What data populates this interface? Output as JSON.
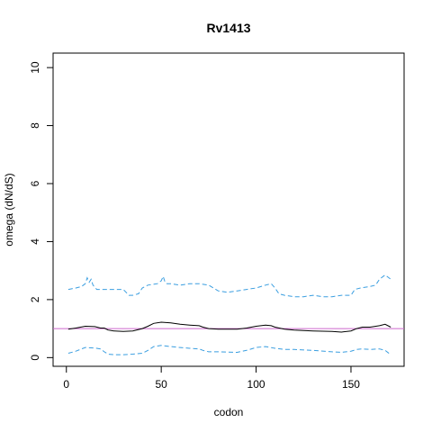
{
  "chart_data": {
    "type": "line",
    "title": "Rv1413",
    "xlabel": "codon",
    "ylabel": "omega (dN/dS)",
    "xlim": [
      -7,
      178
    ],
    "ylim": [
      -0.3,
      10.5
    ],
    "xticks": [
      0,
      50,
      100,
      150
    ],
    "yticks": [
      0,
      2,
      4,
      6,
      8,
      10
    ],
    "reference_line": {
      "y": 1,
      "color": "#cc66cc"
    },
    "series": [
      {
        "role": "estimate",
        "color": "#000000",
        "style": "solid",
        "x": [
          1,
          5,
          10,
          15,
          18,
          20,
          22,
          25,
          30,
          35,
          40,
          43,
          46,
          50,
          55,
          60,
          65,
          70,
          72,
          75,
          80,
          90,
          95,
          100,
          105,
          108,
          110,
          115,
          120,
          130,
          140,
          145,
          150,
          153,
          156,
          160,
          165,
          168,
          171
        ],
        "y": [
          0.98,
          1.02,
          1.08,
          1.07,
          1.02,
          1.02,
          0.95,
          0.92,
          0.9,
          0.92,
          1.0,
          1.08,
          1.18,
          1.22,
          1.2,
          1.15,
          1.12,
          1.1,
          1.05,
          1.0,
          0.98,
          0.98,
          1.02,
          1.08,
          1.12,
          1.1,
          1.05,
          0.98,
          0.95,
          0.92,
          0.9,
          0.88,
          0.92,
          1.0,
          1.05,
          1.05,
          1.1,
          1.15,
          1.05
        ]
      },
      {
        "role": "upper",
        "color": "#3a9ee0",
        "style": "dashed",
        "x": [
          1,
          5,
          8,
          10,
          11,
          12,
          13,
          14,
          16,
          20,
          25,
          30,
          33,
          35,
          38,
          40,
          43,
          48,
          50,
          51,
          52,
          53,
          55,
          60,
          65,
          70,
          75,
          80,
          85,
          90,
          95,
          100,
          105,
          108,
          110,
          112,
          115,
          120,
          125,
          130,
          135,
          140,
          145,
          150,
          152,
          155,
          160,
          163,
          165,
          168,
          171
        ],
        "y": [
          2.35,
          2.4,
          2.45,
          2.55,
          2.75,
          2.6,
          2.7,
          2.5,
          2.35,
          2.35,
          2.35,
          2.35,
          2.15,
          2.15,
          2.2,
          2.4,
          2.5,
          2.55,
          2.65,
          2.8,
          2.6,
          2.55,
          2.55,
          2.5,
          2.55,
          2.55,
          2.5,
          2.3,
          2.25,
          2.3,
          2.35,
          2.4,
          2.5,
          2.55,
          2.4,
          2.2,
          2.15,
          2.1,
          2.1,
          2.15,
          2.1,
          2.1,
          2.15,
          2.15,
          2.35,
          2.4,
          2.45,
          2.5,
          2.7,
          2.85,
          2.7
        ]
      },
      {
        "role": "lower",
        "color": "#3a9ee0",
        "style": "dashed",
        "x": [
          1,
          5,
          8,
          10,
          15,
          18,
          20,
          22,
          25,
          30,
          35,
          40,
          43,
          46,
          50,
          55,
          60,
          65,
          70,
          72,
          75,
          80,
          90,
          95,
          100,
          105,
          110,
          115,
          120,
          130,
          140,
          145,
          150,
          153,
          156,
          160,
          165,
          168,
          171
        ],
        "y": [
          0.15,
          0.22,
          0.3,
          0.35,
          0.33,
          0.3,
          0.2,
          0.12,
          0.1,
          0.1,
          0.12,
          0.15,
          0.25,
          0.38,
          0.42,
          0.38,
          0.35,
          0.32,
          0.3,
          0.25,
          0.2,
          0.2,
          0.18,
          0.25,
          0.35,
          0.38,
          0.32,
          0.28,
          0.28,
          0.25,
          0.2,
          0.18,
          0.22,
          0.28,
          0.3,
          0.28,
          0.3,
          0.25,
          0.1
        ]
      }
    ]
  }
}
